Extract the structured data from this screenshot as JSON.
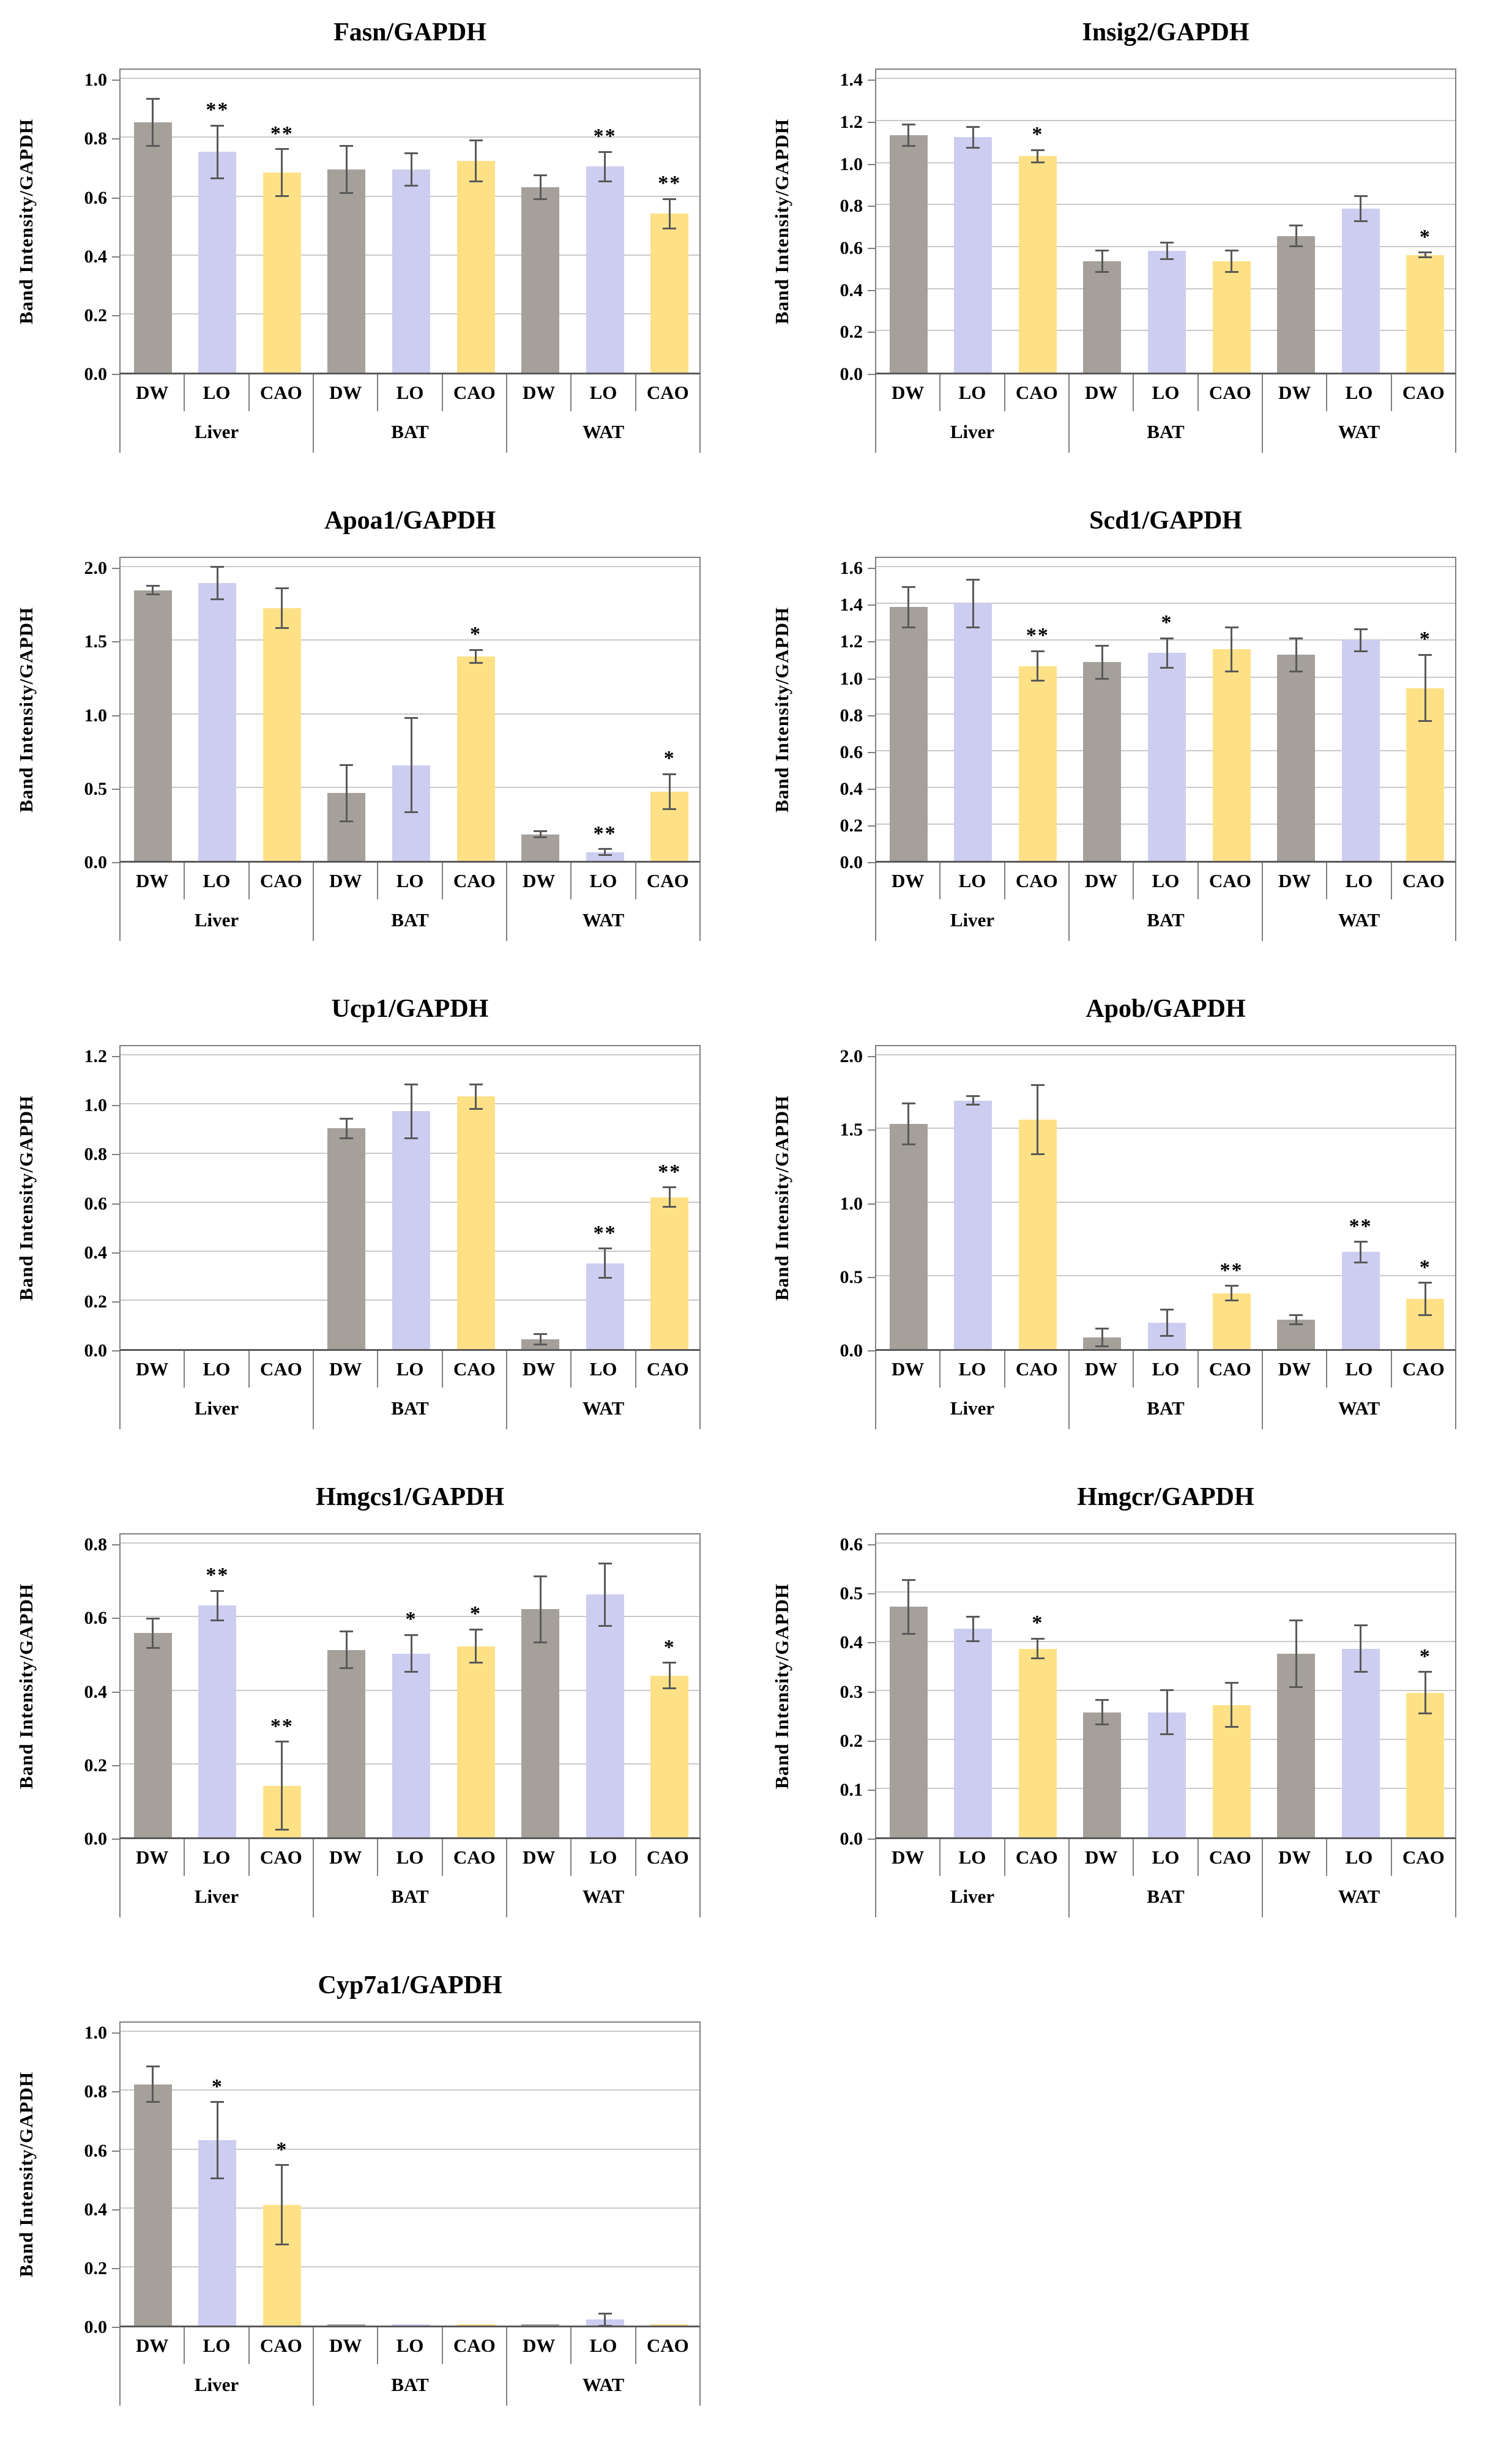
{
  "figure": {
    "ylabel": "Band Intensity/GAPDH",
    "treatments": [
      "DW",
      "LO",
      "CAO"
    ],
    "tissues": [
      "Liver",
      "BAT",
      "WAT"
    ],
    "bar_colors": [
      "#a5a09a",
      "#cdcdf1",
      "#fee187"
    ],
    "grid_color": "#c9c9c9",
    "axis_color": "#808080",
    "baseline_color": "#595959",
    "error_color": "#595959",
    "sig_symbols": {
      "single": "*",
      "double": "**"
    }
  },
  "chart_data": [
    {
      "type": "bar",
      "title": "Fasn/GAPDH",
      "ylabel": "Band Intensity/GAPDH",
      "ylim": [
        0,
        1.0
      ],
      "ytick_values": [
        0,
        0.2,
        0.4,
        0.6,
        0.8,
        1.0
      ],
      "ytick_labels": [
        "0.0",
        "0.2",
        "0.4",
        "0.6",
        "0.8",
        "1.0"
      ],
      "groups": [
        "Liver",
        "BAT",
        "WAT"
      ],
      "bars": [
        "DW",
        "LO",
        "CAO"
      ],
      "series": [
        {
          "group": "Liver",
          "values": [
            0.85,
            0.75,
            0.68
          ],
          "errors": [
            0.08,
            0.09,
            0.08
          ],
          "sig": [
            "",
            "**",
            "**"
          ]
        },
        {
          "group": "BAT",
          "values": [
            0.69,
            0.69,
            0.72
          ],
          "errors": [
            0.08,
            0.055,
            0.07
          ],
          "sig": [
            "",
            "",
            ""
          ]
        },
        {
          "group": "WAT",
          "values": [
            0.63,
            0.7,
            0.54
          ],
          "errors": [
            0.04,
            0.05,
            0.05
          ],
          "sig": [
            "",
            "**",
            "**"
          ]
        }
      ]
    },
    {
      "type": "bar",
      "title": "Insig2/GAPDH",
      "ylabel": "Band Intensity/GAPDH",
      "ylim": [
        0,
        1.4
      ],
      "ytick_values": [
        0,
        0.2,
        0.4,
        0.6,
        0.8,
        1.0,
        1.2,
        1.4
      ],
      "ytick_labels": [
        "0.0",
        "0.2",
        "0.4",
        "0.6",
        "0.8",
        "1.0",
        "1.2",
        "1.4"
      ],
      "groups": [
        "Liver",
        "BAT",
        "WAT"
      ],
      "bars": [
        "DW",
        "LO",
        "CAO"
      ],
      "series": [
        {
          "group": "Liver",
          "values": [
            1.13,
            1.12,
            1.03
          ],
          "errors": [
            0.05,
            0.05,
            0.03
          ],
          "sig": [
            "",
            "",
            "*"
          ]
        },
        {
          "group": "BAT",
          "values": [
            0.53,
            0.58,
            0.53
          ],
          "errors": [
            0.05,
            0.04,
            0.05
          ],
          "sig": [
            "",
            "",
            ""
          ]
        },
        {
          "group": "WAT",
          "values": [
            0.65,
            0.78,
            0.56
          ],
          "errors": [
            0.05,
            0.06,
            0.012
          ],
          "sig": [
            "",
            "",
            "*"
          ]
        }
      ]
    },
    {
      "type": "bar",
      "title": "Apoa1/GAPDH",
      "ylabel": "Band Intensity/GAPDH",
      "ylim": [
        0,
        2.0
      ],
      "ytick_values": [
        0,
        0.5,
        1.0,
        1.5,
        2.0
      ],
      "ytick_labels": [
        "0.0",
        "0.5",
        "1.0",
        "1.5",
        "2.0"
      ],
      "groups": [
        "Liver",
        "BAT",
        "WAT"
      ],
      "bars": [
        "DW",
        "LO",
        "CAO"
      ],
      "series": [
        {
          "group": "Liver",
          "values": [
            1.84,
            1.89,
            1.72
          ],
          "errors": [
            0.03,
            0.11,
            0.135
          ],
          "sig": [
            "",
            "",
            ""
          ]
        },
        {
          "group": "BAT",
          "values": [
            0.46,
            0.65,
            1.39
          ],
          "errors": [
            0.19,
            0.32,
            0.045
          ],
          "sig": [
            "",
            "",
            "*"
          ]
        },
        {
          "group": "WAT",
          "values": [
            0.18,
            0.06,
            0.47
          ],
          "errors": [
            0.02,
            0.02,
            0.12
          ],
          "sig": [
            "",
            "**",
            "*"
          ]
        }
      ]
    },
    {
      "type": "bar",
      "title": "Scd1/GAPDH",
      "ylabel": "Band Intensity/GAPDH",
      "ylim": [
        0,
        1.6
      ],
      "ytick_values": [
        0,
        0.2,
        0.4,
        0.6,
        0.8,
        1.0,
        1.2,
        1.4,
        1.6
      ],
      "ytick_labels": [
        "0.0",
        "0.2",
        "0.4",
        "0.6",
        "0.8",
        "1.0",
        "1.2",
        "1.4",
        "1.6"
      ],
      "groups": [
        "Liver",
        "BAT",
        "WAT"
      ],
      "bars": [
        "DW",
        "LO",
        "CAO"
      ],
      "series": [
        {
          "group": "Liver",
          "values": [
            1.38,
            1.4,
            1.06
          ],
          "errors": [
            0.11,
            0.13,
            0.08
          ],
          "sig": [
            "",
            "",
            "**"
          ]
        },
        {
          "group": "BAT",
          "values": [
            1.08,
            1.13,
            1.15
          ],
          "errors": [
            0.09,
            0.08,
            0.12
          ],
          "sig": [
            "",
            "*",
            ""
          ]
        },
        {
          "group": "WAT",
          "values": [
            1.12,
            1.2,
            0.94
          ],
          "errors": [
            0.09,
            0.06,
            0.18
          ],
          "sig": [
            "",
            "",
            "*"
          ]
        }
      ]
    },
    {
      "type": "bar",
      "title": "Ucp1/GAPDH",
      "ylabel": "Band Intensity/GAPDH",
      "ylim": [
        0,
        1.2
      ],
      "ytick_values": [
        0,
        0.2,
        0.4,
        0.6,
        0.8,
        1.0,
        1.2
      ],
      "ytick_labels": [
        "0.0",
        "0.2",
        "0.4",
        "0.6",
        "0.8",
        "1.0",
        "1.2"
      ],
      "groups": [
        "Liver",
        "BAT",
        "WAT"
      ],
      "bars": [
        "DW",
        "LO",
        "CAO"
      ],
      "series": [
        {
          "group": "Liver",
          "values": [
            0,
            0,
            0
          ],
          "errors": [
            0,
            0,
            0
          ],
          "sig": [
            "",
            "",
            ""
          ]
        },
        {
          "group": "BAT",
          "values": [
            0.9,
            0.97,
            1.03
          ],
          "errors": [
            0.04,
            0.11,
            0.05
          ],
          "sig": [
            "",
            "",
            ""
          ]
        },
        {
          "group": "WAT",
          "values": [
            0.04,
            0.35,
            0.62
          ],
          "errors": [
            0.02,
            0.06,
            0.04
          ],
          "sig": [
            "",
            "**",
            "**"
          ]
        }
      ]
    },
    {
      "type": "bar",
      "title": "Apob/GAPDH",
      "ylabel": "Band Intensity/GAPDH",
      "ylim": [
        0,
        2.0
      ],
      "ytick_values": [
        0,
        0.5,
        1.0,
        1.5,
        2.0
      ],
      "ytick_labels": [
        "0.0",
        "0.5",
        "1.0",
        "1.5",
        "2.0"
      ],
      "groups": [
        "Liver",
        "BAT",
        "WAT"
      ],
      "bars": [
        "DW",
        "LO",
        "CAO"
      ],
      "series": [
        {
          "group": "Liver",
          "values": [
            1.53,
            1.69,
            1.56
          ],
          "errors": [
            0.14,
            0.03,
            0.235
          ],
          "sig": [
            "",
            "",
            ""
          ]
        },
        {
          "group": "BAT",
          "values": [
            0.08,
            0.18,
            0.38
          ],
          "errors": [
            0.06,
            0.09,
            0.05
          ],
          "sig": [
            "",
            "",
            "**"
          ]
        },
        {
          "group": "WAT",
          "values": [
            0.2,
            0.66,
            0.34
          ],
          "errors": [
            0.03,
            0.07,
            0.11
          ],
          "sig": [
            "",
            "**",
            "*"
          ]
        }
      ]
    },
    {
      "type": "bar",
      "title": "Hmgcs1/GAPDH",
      "ylabel": "Band Intensity/GAPDH",
      "ylim": [
        0,
        0.8
      ],
      "ytick_values": [
        0,
        0.2,
        0.4,
        0.6,
        0.8
      ],
      "ytick_labels": [
        "0.0",
        "0.2",
        "0.4",
        "0.6",
        "0.8"
      ],
      "groups": [
        "Liver",
        "BAT",
        "WAT"
      ],
      "bars": [
        "DW",
        "LO",
        "CAO"
      ],
      "series": [
        {
          "group": "Liver",
          "values": [
            0.555,
            0.63,
            0.14
          ],
          "errors": [
            0.04,
            0.04,
            0.12
          ],
          "sig": [
            "",
            "**",
            "**"
          ]
        },
        {
          "group": "BAT",
          "values": [
            0.51,
            0.5,
            0.52
          ],
          "errors": [
            0.05,
            0.05,
            0.045
          ],
          "sig": [
            "",
            "*",
            "*"
          ]
        },
        {
          "group": "WAT",
          "values": [
            0.62,
            0.66,
            0.44
          ],
          "errors": [
            0.09,
            0.085,
            0.035
          ],
          "sig": [
            "",
            "",
            "*"
          ]
        }
      ]
    },
    {
      "type": "bar",
      "title": "Hmgcr/GAPDH",
      "ylabel": "Band Intensity/GAPDH",
      "ylim": [
        0,
        0.6
      ],
      "ytick_values": [
        0,
        0.1,
        0.2,
        0.3,
        0.4,
        0.5,
        0.6
      ],
      "ytick_labels": [
        "0.0",
        "0.1",
        "0.2",
        "0.3",
        "0.4",
        "0.5",
        "0.6"
      ],
      "groups": [
        "Liver",
        "BAT",
        "WAT"
      ],
      "bars": [
        "DW",
        "LO",
        "CAO"
      ],
      "series": [
        {
          "group": "Liver",
          "values": [
            0.47,
            0.425,
            0.385
          ],
          "errors": [
            0.055,
            0.025,
            0.02
          ],
          "sig": [
            "",
            "",
            "*"
          ]
        },
        {
          "group": "BAT",
          "values": [
            0.255,
            0.255,
            0.27
          ],
          "errors": [
            0.025,
            0.045,
            0.045
          ],
          "sig": [
            "",
            "",
            ""
          ]
        },
        {
          "group": "WAT",
          "values": [
            0.375,
            0.385,
            0.295
          ],
          "errors": [
            0.068,
            0.047,
            0.042
          ],
          "sig": [
            "",
            "",
            "*"
          ]
        }
      ]
    },
    {
      "type": "bar",
      "title": "Cyp7a1/GAPDH",
      "ylabel": "Band Intensity/GAPDH",
      "ylim": [
        0,
        1.0
      ],
      "ytick_values": [
        0,
        0.2,
        0.4,
        0.6,
        0.8,
        1.0
      ],
      "ytick_labels": [
        "0.0",
        "0.2",
        "0.4",
        "0.6",
        "0.8",
        "1.0"
      ],
      "groups": [
        "Liver",
        "BAT",
        "WAT"
      ],
      "bars": [
        "DW",
        "LO",
        "CAO"
      ],
      "series": [
        {
          "group": "Liver",
          "values": [
            0.82,
            0.63,
            0.41
          ],
          "errors": [
            0.06,
            0.13,
            0.135
          ],
          "sig": [
            "",
            "*",
            "*"
          ]
        },
        {
          "group": "BAT",
          "values": [
            0.005,
            0.005,
            0.005
          ],
          "errors": [
            0,
            0,
            0
          ],
          "sig": [
            "",
            "",
            ""
          ]
        },
        {
          "group": "WAT",
          "values": [
            0.005,
            0.02,
            0.005
          ],
          "errors": [
            0,
            0.02,
            0
          ],
          "sig": [
            "",
            "",
            ""
          ]
        }
      ]
    }
  ]
}
